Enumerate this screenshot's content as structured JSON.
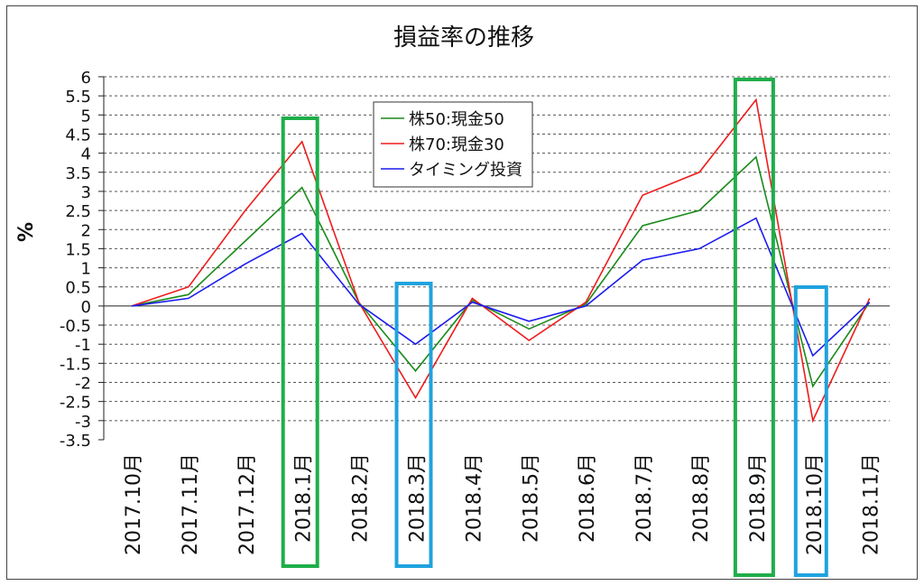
{
  "chart_data": {
    "type": "line",
    "title": "損益率の推移",
    "xlabel": "",
    "ylabel": "%",
    "ylim": [
      -3.5,
      6
    ],
    "yticks": [
      6,
      5.5,
      5,
      4.5,
      4,
      3.5,
      3,
      2.5,
      2,
      1.5,
      1,
      0.5,
      0,
      -0.5,
      -1,
      -1.5,
      -2,
      -2.5,
      -3,
      -3.5
    ],
    "ytick_labels": [
      "6",
      "5.5",
      "5",
      "4.5",
      "4",
      "3.5",
      "3",
      "2.5",
      "2",
      "1.5",
      "1",
      "0.5",
      "0",
      "-0.5",
      "-1",
      "-1.5",
      "-2",
      "-2.5",
      "-3",
      "-3.5"
    ],
    "grid": true,
    "legend_position": "top-center",
    "categories": [
      "2017.10月",
      "2017.11月",
      "2017.12月",
      "2018.1月",
      "2018.2月",
      "2018.3月",
      "2018.4月",
      "2018.5月",
      "2018.6月",
      "2018.7月",
      "2018.8月",
      "2018.9月",
      "2018.10月",
      "2018.11月"
    ],
    "series": [
      {
        "name": "株50:現金50",
        "color": "#1a8a1a",
        "values": [
          0,
          0.3,
          1.7,
          3.1,
          0.1,
          -1.7,
          0.15,
          -0.6,
          0.05,
          2.1,
          2.5,
          3.9,
          -2.1,
          0.1
        ]
      },
      {
        "name": "株70:現金30",
        "color": "#ee1c1c",
        "values": [
          0,
          0.5,
          2.5,
          4.3,
          0.1,
          -2.4,
          0.2,
          -0.9,
          0.1,
          2.9,
          3.5,
          5.4,
          -3.0,
          0.2
        ]
      },
      {
        "name": "タイミング投資",
        "color": "#1c1cee",
        "values": [
          0,
          0.2,
          1.1,
          1.9,
          0.05,
          -1.0,
          0.1,
          -0.4,
          0.0,
          1.2,
          1.5,
          2.3,
          -1.3,
          0.1
        ]
      }
    ],
    "highlights": [
      {
        "category": "2018.1月",
        "color": "#1fae4a"
      },
      {
        "category": "2018.3月",
        "color": "#1fa3de"
      },
      {
        "category": "2018.9月",
        "color": "#1fae4a"
      },
      {
        "category": "2018.10月",
        "color": "#1fa3de"
      }
    ]
  }
}
